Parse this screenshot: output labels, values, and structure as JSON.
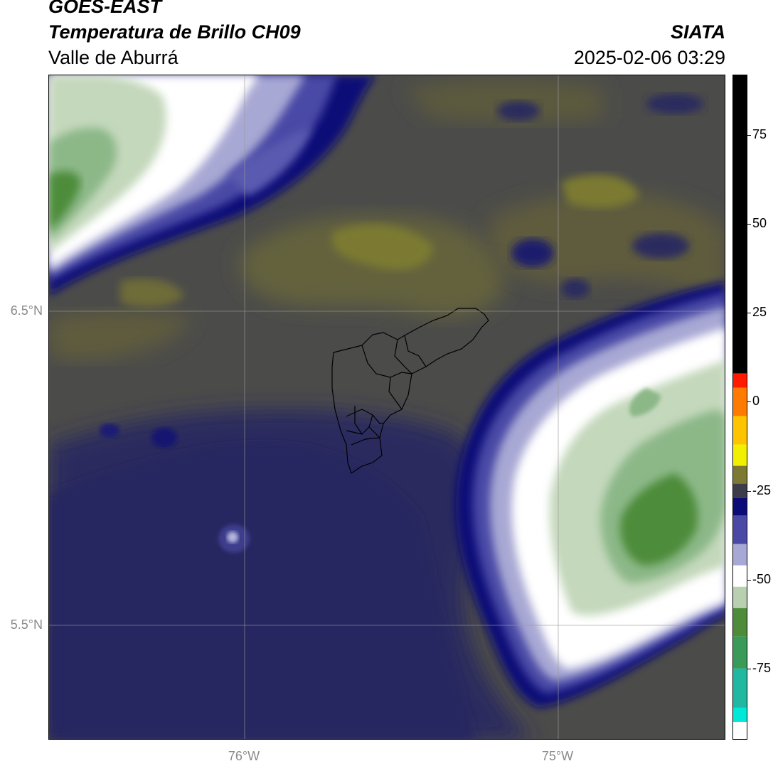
{
  "header": {
    "satellite": "GOES-EAST",
    "product": "Temperatura de Brillo CH09",
    "region": "Valle de Aburrá",
    "agency": "SIATA",
    "datetime": "2025-02-06 03:29"
  },
  "map": {
    "lat_labels": [
      "6.5°N",
      "5.5°N"
    ],
    "lon_labels": [
      "76°W",
      "75°W"
    ],
    "layers": [
      "brightness-temperature-field",
      "aburra-valley-municipality-boundaries",
      "graticule"
    ]
  },
  "colorbar": {
    "tick_labels": [
      "75",
      "50",
      "25",
      "0",
      "-25",
      "-50",
      "-75"
    ],
    "ticks": [
      75,
      50,
      25,
      0,
      -25,
      -50,
      -75
    ],
    "min": -95,
    "max": 92,
    "segments": [
      {
        "from": 8,
        "to": 92,
        "color": "#000000"
      },
      {
        "from": 4,
        "to": 8,
        "color": "#ff1a00"
      },
      {
        "from": -4,
        "to": 4,
        "color": "#ff7a00"
      },
      {
        "from": -12,
        "to": -4,
        "color": "#ffc400"
      },
      {
        "from": -18,
        "to": -12,
        "color": "#f0f000"
      },
      {
        "from": -23,
        "to": -18,
        "color": "#7c7a32"
      },
      {
        "from": -27,
        "to": -23,
        "color": "#3c3c4a"
      },
      {
        "from": -32,
        "to": -27,
        "color": "#0c0c78"
      },
      {
        "from": -40,
        "to": -32,
        "color": "#4a4aa6"
      },
      {
        "from": -46,
        "to": -40,
        "color": "#a8a8d4"
      },
      {
        "from": -52,
        "to": -46,
        "color": "#ffffff"
      },
      {
        "from": -58,
        "to": -52,
        "color": "#b8d0b0"
      },
      {
        "from": -66,
        "to": -58,
        "color": "#4e8c3a"
      },
      {
        "from": -75,
        "to": -66,
        "color": "#3a9a5a"
      },
      {
        "from": -86,
        "to": -75,
        "color": "#20b8a0"
      },
      {
        "from": -90,
        "to": -86,
        "color": "#00e8d8"
      },
      {
        "from": -95,
        "to": -90,
        "color": "#ffffff"
      }
    ]
  },
  "colors": {
    "cloud_free_warm": "#55553e",
    "cloud_free_hot": "#7c7a32",
    "low_cloud": "#2a2a5e",
    "cloud_edge": "#0c0c78",
    "cold_top": "#ffffff",
    "coldest_top": "#4e8c3a"
  }
}
